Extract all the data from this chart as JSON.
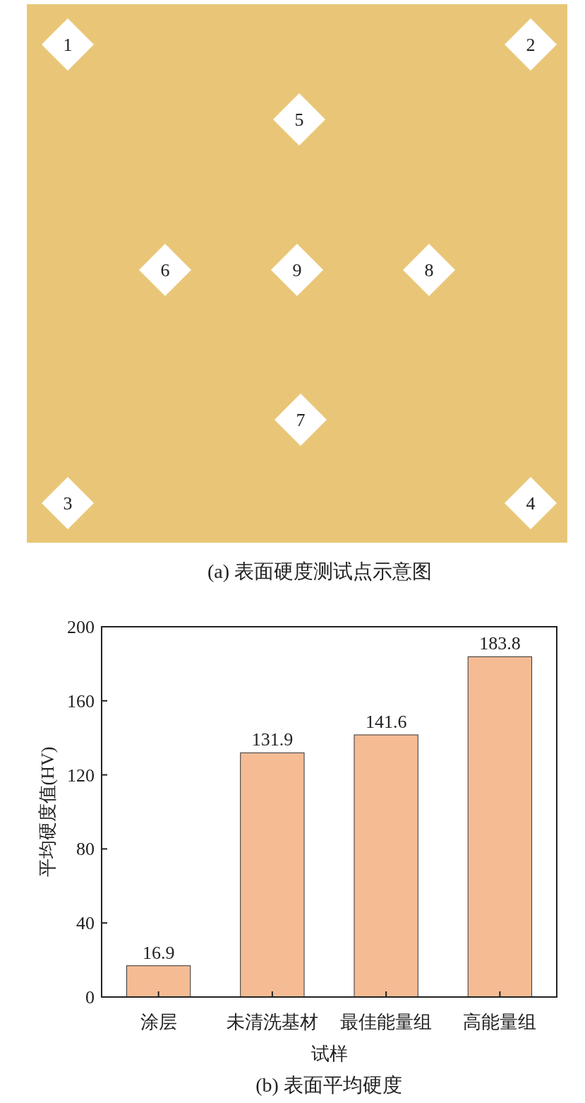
{
  "chart_data": [
    {
      "type": "other",
      "title": "(a) 表面硬度测试点示意图",
      "annotations": [
        "1",
        "2",
        "3",
        "4",
        "5",
        "6",
        "7",
        "8",
        "9"
      ]
    },
    {
      "type": "bar",
      "title": "(b) 表面平均硬度",
      "xlabel": "试样",
      "ylabel": "平均硬度值(HV)",
      "categories": [
        "涂层",
        "未清洗基材",
        "最佳能量组",
        "高能量组"
      ],
      "values": [
        16.9,
        131.9,
        141.6,
        183.8
      ],
      "color": "#f5bc94",
      "ylim": [
        0,
        200
      ],
      "yticks": [
        0,
        40,
        80,
        120,
        160,
        200
      ],
      "data_labels": true
    }
  ]
}
